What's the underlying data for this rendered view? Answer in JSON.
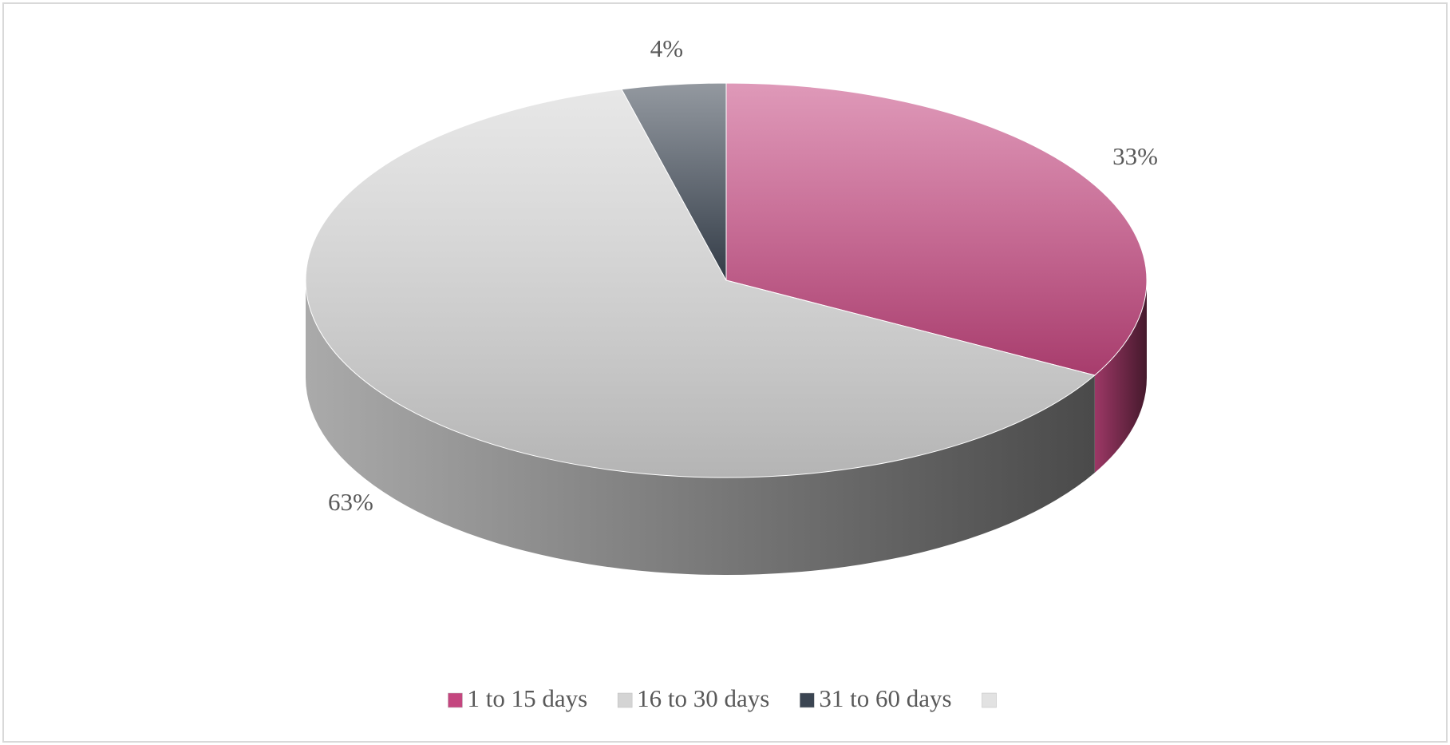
{
  "chart_data": {
    "type": "pie3d",
    "categories": [
      "1 to 15 days",
      "16 to 30 days",
      "31 to 60 days",
      null
    ],
    "values": [
      33,
      63,
      4,
      0
    ],
    "value_labels": [
      "33%",
      "63%",
      "4%",
      null
    ],
    "colors": [
      "#c4467f",
      "#d4d4d4",
      "#3b4552",
      "#e2e2e2"
    ],
    "legend": "bottom"
  }
}
